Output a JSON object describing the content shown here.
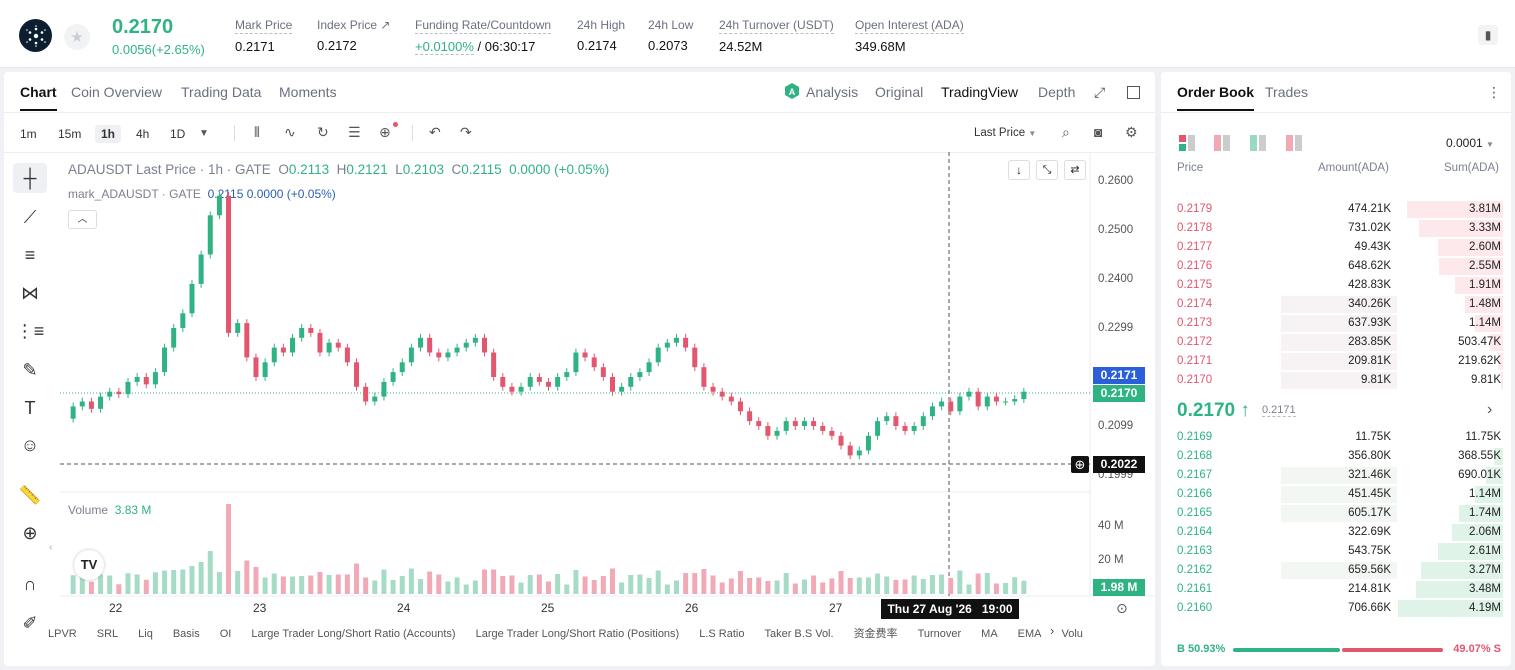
{
  "header": {
    "price": "0.2170",
    "change": "0.0056(+2.65%)",
    "stats": [
      {
        "label": "Mark Price",
        "value": "0.2171"
      },
      {
        "label": "Index Price ↗",
        "value": "0.2172"
      },
      {
        "label": "Funding Rate/Countdown",
        "value_green": "+0.0100%",
        "value": "/ 06:30:17"
      },
      {
        "label": "24h High",
        "value": "0.2174"
      },
      {
        "label": "24h Low",
        "value": "0.2073"
      },
      {
        "label": "24h Turnover (USDT)",
        "value": "24.52M"
      },
      {
        "label": "Open Interest (ADA)",
        "value": "349.68M"
      }
    ]
  },
  "chart_tabs": [
    "Chart",
    "Coin Overview",
    "Trading Data",
    "Moments"
  ],
  "chart_views": {
    "analysis": "Analysis",
    "original": "Original",
    "tradingview": "TradingView",
    "depth": "Depth"
  },
  "timeframes": [
    "1m",
    "15m",
    "1h",
    "4h",
    "1D"
  ],
  "price_selector": "Last Price",
  "legend": {
    "title": "ADAUSDT Last Price · 1h · GATE",
    "o_label": "O",
    "o": "0.2113",
    "h_label": "H",
    "h": "0.2121",
    "l_label": "L",
    "l": "0.2103",
    "c_label": "C",
    "c": "0.2115",
    "chg": "0.0000 (+0.05%)",
    "mark_label": "mark_ADAUSDT · GATE",
    "mark_value": "0.2115  0.0000 (+0.05%)"
  },
  "volume_label": "Volume",
  "volume_value": "3.83 M",
  "tags": {
    "mark": "0.2171",
    "last": "0.2170",
    "cursor": "0.2022",
    "volume": "1.98 M",
    "time": "Thu 27 Aug '26   19:00"
  },
  "y_labels": [
    "0.2600",
    "0.2500",
    "0.2400",
    "0.2299",
    "0.2099",
    "0.1999",
    "40 M",
    "20 M"
  ],
  "x_labels": [
    "22",
    "23",
    "24",
    "25",
    "26",
    "27"
  ],
  "indicators": [
    "LPVR",
    "SRL",
    "Liq",
    "Basis",
    "OI",
    "Large Trader Long/Short Ratio (Accounts)",
    "Large Trader Long/Short Ratio (Positions)",
    "L.S Ratio",
    "Taker B.S Vol.",
    "资金费率",
    "Turnover",
    "MA",
    "EMA",
    "Volu"
  ],
  "orderbook": {
    "tabs": [
      "Order Book",
      "Trades"
    ],
    "precision": "0.0001",
    "headers": [
      "Price",
      "Amount(ADA)",
      "Sum(ADA)"
    ],
    "asks": [
      {
        "price": "0.2179",
        "amount": "474.21K",
        "sum": "3.81M",
        "depth": 0.91,
        "amtd": 0.0
      },
      {
        "price": "0.2178",
        "amount": "731.02K",
        "sum": "3.33M",
        "depth": 0.8,
        "amtd": 0.0
      },
      {
        "price": "0.2177",
        "amount": "49.43K",
        "sum": "2.60M",
        "depth": 0.62,
        "amtd": 0.0
      },
      {
        "price": "0.2176",
        "amount": "648.62K",
        "sum": "2.55M",
        "depth": 0.61,
        "amtd": 0.0
      },
      {
        "price": "0.2175",
        "amount": "428.83K",
        "sum": "1.91M",
        "depth": 0.46,
        "amtd": 0.0
      },
      {
        "price": "0.2174",
        "amount": "340.26K",
        "sum": "1.48M",
        "depth": 0.36,
        "amtd": 0.35
      },
      {
        "price": "0.2173",
        "amount": "637.93K",
        "sum": "1.14M",
        "depth": 0.27,
        "amtd": 0.35
      },
      {
        "price": "0.2172",
        "amount": "283.85K",
        "sum": "503.47K",
        "depth": 0.12,
        "amtd": 0.35
      },
      {
        "price": "0.2171",
        "amount": "209.81K",
        "sum": "219.62K",
        "depth": 0.05,
        "amtd": 0.35
      },
      {
        "price": "0.2170",
        "amount": "9.81K",
        "sum": "9.81K",
        "depth": 0.02,
        "amtd": 0.35
      }
    ],
    "mid_price": "0.2170 ↑",
    "mid_mark": "0.2171",
    "bids": [
      {
        "price": "0.2169",
        "amount": "11.75K",
        "sum": "11.75K",
        "depth": 0.0,
        "amtd": 0.0
      },
      {
        "price": "0.2168",
        "amount": "356.80K",
        "sum": "368.55K",
        "depth": 0.09,
        "amtd": 0.0
      },
      {
        "price": "0.2167",
        "amount": "321.46K",
        "sum": "690.01K",
        "depth": 0.16,
        "amtd": 0.35
      },
      {
        "price": "0.2166",
        "amount": "451.45K",
        "sum": "1.14M",
        "depth": 0.27,
        "amtd": 0.35
      },
      {
        "price": "0.2165",
        "amount": "605.17K",
        "sum": "1.74M",
        "depth": 0.42,
        "amtd": 0.35
      },
      {
        "price": "0.2164",
        "amount": "322.69K",
        "sum": "2.06M",
        "depth": 0.49,
        "amtd": 0.0
      },
      {
        "price": "0.2163",
        "amount": "543.75K",
        "sum": "2.61M",
        "depth": 0.62,
        "amtd": 0.0
      },
      {
        "price": "0.2162",
        "amount": "659.56K",
        "sum": "3.27M",
        "depth": 0.78,
        "amtd": 0.35
      },
      {
        "price": "0.2161",
        "amount": "214.81K",
        "sum": "3.48M",
        "depth": 0.83,
        "amtd": 0.0
      },
      {
        "price": "0.2160",
        "amount": "706.66K",
        "sum": "4.19M",
        "depth": 1.0,
        "amtd": 0.0
      }
    ],
    "buy_ratio": "B 50.93%",
    "sell_ratio": "49.07% S",
    "buy_fraction": 0.5093
  },
  "colors": {
    "green": "#2fb383",
    "red": "#e2566e"
  }
}
